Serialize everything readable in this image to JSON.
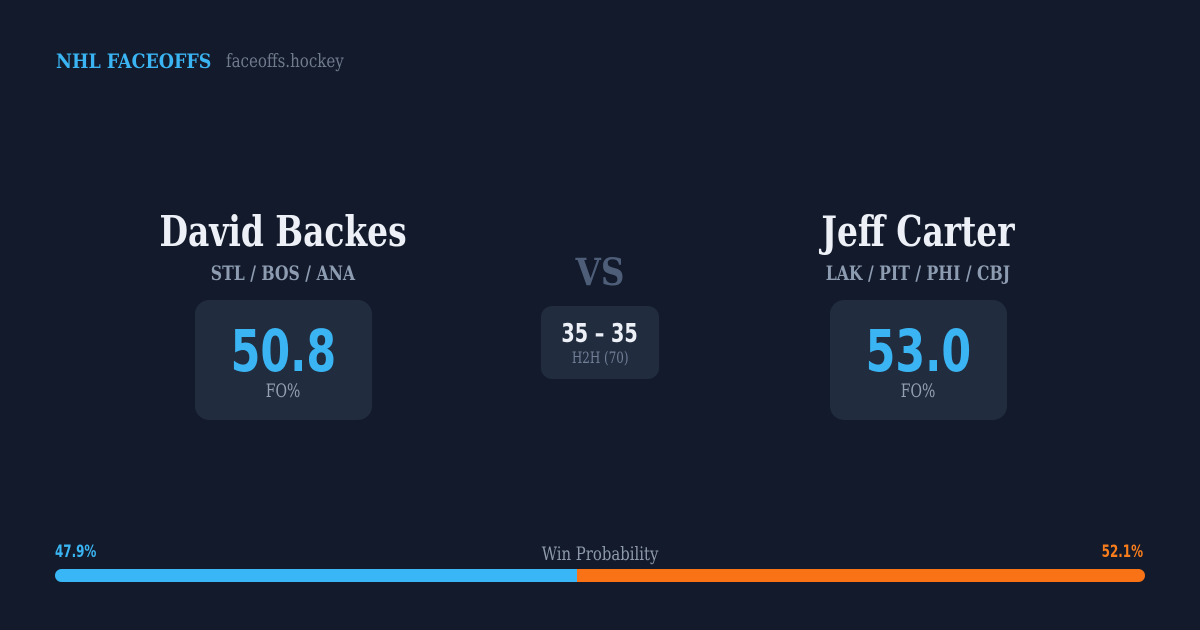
{
  "header": {
    "brand": "NHL FACEOFFS",
    "domain": "faceoffs.hockey"
  },
  "matchup": {
    "vs_label": "VS",
    "h2h": {
      "score": "35 – 35",
      "label": "H2H (70)"
    },
    "players": [
      {
        "name": "David Backes",
        "teams": "STL / BOS / ANA",
        "fo_pct": "50.8",
        "fo_label": "FO%"
      },
      {
        "name": "Jeff Carter",
        "teams": "LAK / PIT / PHI / CBJ",
        "fo_pct": "53.0",
        "fo_label": "FO%"
      }
    ]
  },
  "win_probability": {
    "label": "Win Probability",
    "left_pct_label": "47.9%",
    "right_pct_label": "52.1%",
    "left_value": 47.9,
    "right_value": 52.1,
    "left_color": "#38b6f5",
    "right_color": "#f97316"
  }
}
